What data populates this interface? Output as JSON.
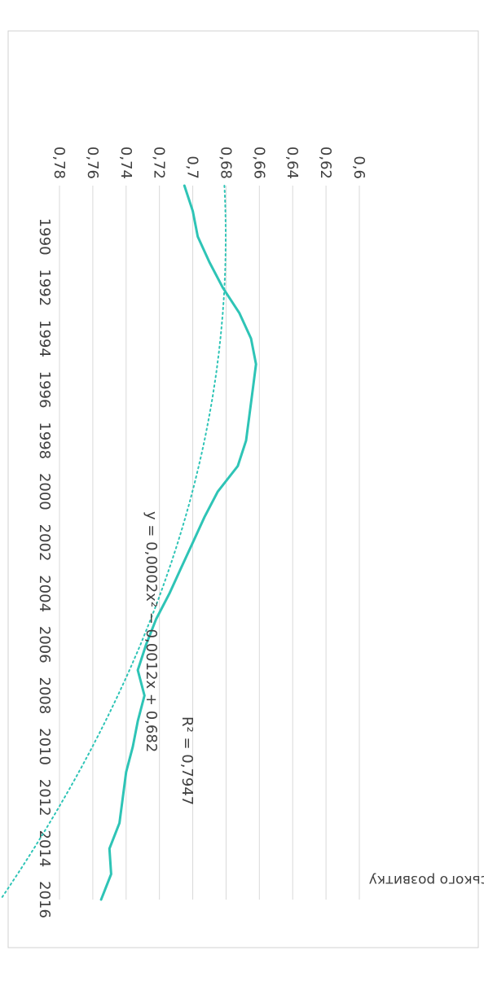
{
  "chart_data": {
    "type": "line",
    "title": "",
    "xlabel": "",
    "ylabel": "Індекс людського розвитку",
    "xlim": [
      1988,
      2016
    ],
    "ylim": [
      0.6,
      0.78
    ],
    "x_ticks": [
      "1990",
      "1992",
      "1994",
      "1996",
      "1998",
      "2000",
      "2002",
      "2004",
      "2006",
      "2008",
      "2010",
      "2012",
      "2014",
      "2016"
    ],
    "y_ticks": [
      "0,6",
      "0,62",
      "0,64",
      "0,66",
      "0,68",
      "0,7",
      "0,72",
      "0,74",
      "0,76",
      "0,78"
    ],
    "grid": "horizontal",
    "orientation": "rotated 90° clockwise",
    "colors": {
      "series": "#2ec4b6",
      "trend": "#2ec4b6"
    },
    "series": [
      {
        "values": [
          {
            "x": 1988,
            "y": 0.705
          },
          {
            "x": 1989,
            "y": 0.7
          },
          {
            "x": 1990,
            "y": 0.697
          },
          {
            "x": 1991,
            "y": 0.69
          },
          {
            "x": 1992,
            "y": 0.682
          },
          {
            "x": 1993,
            "y": 0.672
          },
          {
            "x": 1994,
            "y": 0.665
          },
          {
            "x": 1995,
            "y": 0.662
          },
          {
            "x": 1996,
            "y": 0.664
          },
          {
            "x": 1997,
            "y": 0.666
          },
          {
            "x": 1998,
            "y": 0.668
          },
          {
            "x": 1999,
            "y": 0.673
          },
          {
            "x": 2000,
            "y": 0.685
          },
          {
            "x": 2001,
            "y": 0.693
          },
          {
            "x": 2002,
            "y": 0.7
          },
          {
            "x": 2003,
            "y": 0.707
          },
          {
            "x": 2004,
            "y": 0.714
          },
          {
            "x": 2005,
            "y": 0.722
          },
          {
            "x": 2006,
            "y": 0.728
          },
          {
            "x": 2007,
            "y": 0.733
          },
          {
            "x": 2008,
            "y": 0.729
          },
          {
            "x": 2009,
            "y": 0.733
          },
          {
            "x": 2010,
            "y": 0.736
          },
          {
            "x": 2011,
            "y": 0.74
          },
          {
            "x": 2012,
            "y": 0.742
          },
          {
            "x": 2013,
            "y": 0.744
          },
          {
            "x": 2014,
            "y": 0.75
          },
          {
            "x": 2015,
            "y": 0.749
          },
          {
            "x": 2016,
            "y": 0.755
          }
        ]
      }
    ],
    "trendline": {
      "equation": "y = 0,0002x² − 0,0012x + 0,682",
      "r_squared": "R² = 0,7947",
      "coefficients": [
        0.0002,
        -0.0012,
        0.682
      ],
      "x_origin": 1987
    }
  }
}
